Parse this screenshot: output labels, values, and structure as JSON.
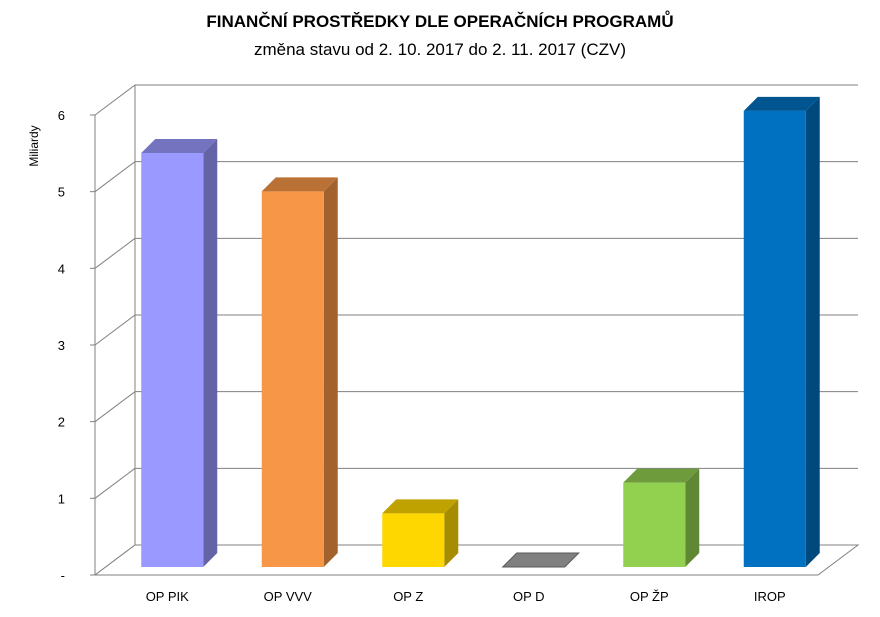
{
  "chart_data": {
    "type": "bar",
    "title": "FINANČNÍ PROSTŘEDKY DLE OPERAČNÍCH PROGRAMŮ",
    "subtitle": "změna stavu od 2. 10. 2017 do 2. 11. 2017 (CZV)",
    "ylabel": "Miliardy",
    "xlabel": "",
    "ylim": [
      0,
      6
    ],
    "y_ticks": [
      "-",
      "1",
      "2",
      "3",
      "4",
      "5",
      "6"
    ],
    "categories": [
      "OP PIK",
      "OP VVV",
      "OP Z",
      "OP D",
      "OP ŽP",
      "IROP"
    ],
    "values": [
      5.4,
      4.9,
      0.7,
      0.0,
      1.1,
      5.95
    ],
    "colors": [
      "#9999ff",
      "#f79646",
      "#ffd700",
      "#808080",
      "#92d050",
      "#0070c0"
    ],
    "grid": true,
    "legend": "none",
    "style": "3d-column"
  }
}
